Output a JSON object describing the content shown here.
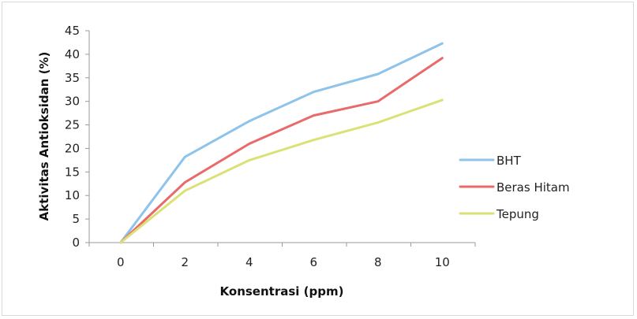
{
  "chart_data": {
    "type": "line",
    "title": "",
    "xlabel": "Konsentrasi (ppm)",
    "ylabel": "Aktivitas Antioksidan (%)",
    "x": [
      0,
      2,
      4,
      6,
      8,
      10
    ],
    "x_tick_labels": [
      "0",
      "2",
      "4",
      "6",
      "8",
      "10"
    ],
    "y_tick_labels": [
      "0",
      "5",
      "10",
      "15",
      "20",
      "25",
      "30",
      "35",
      "40",
      "45"
    ],
    "ylim": [
      0,
      45
    ],
    "grid": false,
    "legend_position": "right",
    "series": [
      {
        "name": "BHT",
        "color": "#8ec3ea",
        "values": [
          0,
          18.2,
          25.8,
          32.0,
          35.8,
          42.3
        ]
      },
      {
        "name": "Beras Hitam",
        "color": "#e86a6a",
        "values": [
          0,
          12.8,
          21.0,
          27.0,
          30.0,
          39.2
        ]
      },
      {
        "name": "Tepung",
        "color": "#dbe176",
        "values": [
          0,
          11.0,
          17.5,
          21.8,
          25.5,
          30.3
        ]
      }
    ]
  }
}
